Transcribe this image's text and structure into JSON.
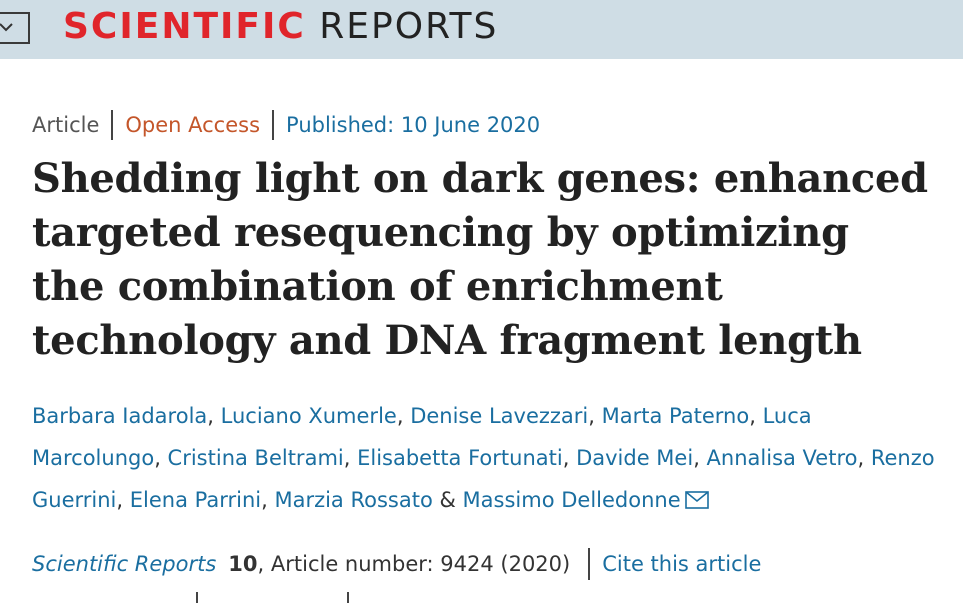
{
  "header": {
    "brand_primary": "SCIENTIFIC",
    "brand_secondary": "REPORTS",
    "brand_color": "#e0252b",
    "background_color": "#cfdde5",
    "menu_icon": "chevron-down-icon"
  },
  "article_meta": {
    "type": "Article",
    "access": "Open Access",
    "published": "Published: 10 June 2020"
  },
  "title": "Shedding light on dark genes: enhanced targeted resequencing by optimizing the combination of enrichment technology and DNA fragment length",
  "authors": [
    "Barbara Iadarola",
    "Luciano Xumerle",
    "Denise Lavezzari",
    "Marta Paterno",
    "Luca Marcolungo",
    "Cristina Beltrami",
    "Elisabetta Fortunati",
    "Davide Mei",
    "Annalisa Vetro",
    "Renzo Guerrini",
    "Elena Parrini",
    "Marzia Rossato",
    "Massimo Delledonne"
  ],
  "author_separator": ",",
  "author_conjunction": "&",
  "corresponding_icon": "mail-icon",
  "citation": {
    "journal": "Scientific Reports",
    "volume": "10",
    "article_number": ", Article number: 9424 (2020)",
    "cite_link": "Cite this article"
  },
  "colors": {
    "link": "#1a6ea0",
    "open_access": "#c4562a",
    "text": "#222222"
  }
}
